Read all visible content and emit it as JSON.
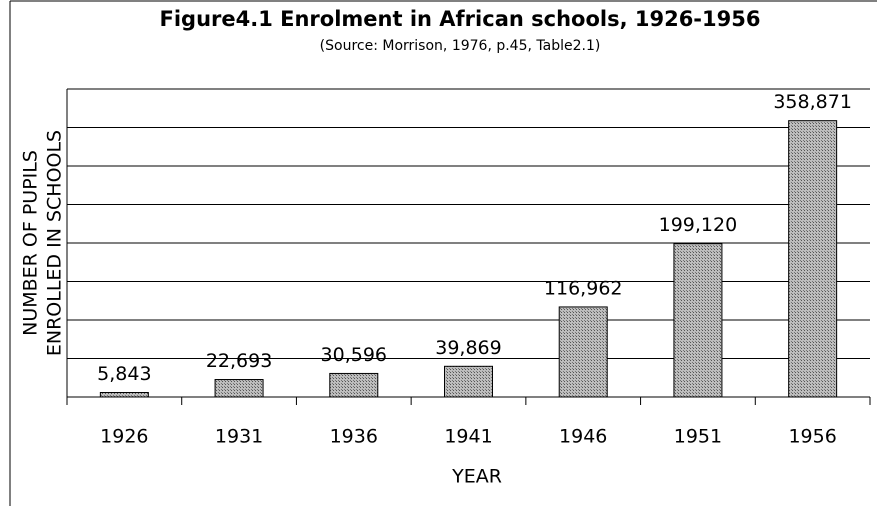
{
  "chart_data": {
    "type": "bar",
    "title": "Figure4.1  Enrolment in African schools, 1926-1956",
    "subtitle": "(Source: Morrison, 1976, p.45, Table2.1)",
    "x_label": "YEAR",
    "y_label": [
      "NUMBER OF PUPILS",
      "ENROLLED IN SCHOOLS"
    ],
    "categories": [
      "1926",
      "1931",
      "1936",
      "1941",
      "1946",
      "1951",
      "1956"
    ],
    "values": [
      5843,
      22693,
      30596,
      39869,
      116962,
      199120,
      358871
    ],
    "value_labels": [
      "5,843",
      "22,693",
      "30,596",
      "39,869",
      "116,962",
      "199,120",
      "358,871"
    ],
    "color": "#9a9a9a",
    "ylim": [
      0,
      400000
    ],
    "yticks": [
      0,
      50000,
      100000,
      150000,
      200000,
      250000,
      300000,
      350000,
      400000
    ],
    "grid": true
  }
}
